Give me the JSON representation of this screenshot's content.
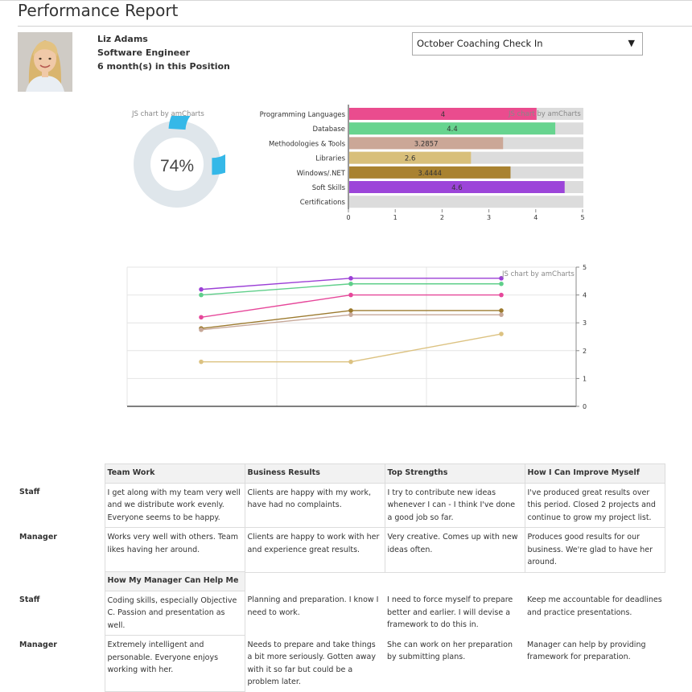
{
  "page": {
    "title": "Performance Report"
  },
  "profile": {
    "name": "Liz Adams",
    "role": "Software Engineer",
    "tenure": "6 month(s) in this Position"
  },
  "review_select": {
    "selected": "October Coaching Check In",
    "caret": "▼"
  },
  "watermarks": {
    "donut": "JS chart by amCharts",
    "bars": "JS chart by amCharts",
    "lines": "JS chart by amCharts"
  },
  "colors": {
    "donut_fill": "#35b8e8",
    "donut_track": "#dfe6eb",
    "bar_track": "#dcdcdc"
  },
  "chart_data": [
    {
      "type": "pie",
      "value_percent": 74,
      "center_label": "74%"
    },
    {
      "type": "bar",
      "orientation": "horizontal",
      "categories": [
        "Programming Languages",
        "Database",
        "Methodologies & Tools",
        "Libraries",
        "Windows/.NET",
        "Soft Skills",
        "Certifications"
      ],
      "values": [
        4,
        4.4,
        3.2857,
        2.6,
        3.4444,
        4.6,
        0
      ],
      "value_labels": [
        "4",
        "4.4",
        "3.2857",
        "2.6",
        "3.4444",
        "4.6",
        ""
      ],
      "colors": [
        "#ea4c8e",
        "#67d48f",
        "#cba797",
        "#d8bf7a",
        "#a98230",
        "#9c45d9",
        "#dcdcdc"
      ],
      "xlim": [
        0,
        5
      ],
      "ticks": [
        "0",
        "1",
        "2",
        "3",
        "4",
        "5"
      ]
    },
    {
      "type": "line",
      "x": [
        1,
        2,
        3
      ],
      "ylim": [
        0,
        5
      ],
      "ticks": [
        "0",
        "1",
        "2",
        "3",
        "4",
        "5"
      ],
      "grid": true,
      "series": [
        {
          "color": "#9b3fd6",
          "values": [
            4.2,
            4.6,
            4.6
          ]
        },
        {
          "color": "#5fcf8a",
          "values": [
            4.0,
            4.4,
            4.4
          ]
        },
        {
          "color": "#e6479a",
          "values": [
            3.2,
            4.0,
            4.0
          ]
        },
        {
          "color": "#9c7a2e",
          "values": [
            2.8,
            3.44,
            3.44
          ]
        },
        {
          "color": "#c7a899",
          "values": [
            2.75,
            3.29,
            3.29
          ]
        },
        {
          "color": "#dcc281",
          "values": [
            1.6,
            1.6,
            2.6
          ]
        }
      ]
    }
  ],
  "feedback": {
    "row_labels": {
      "staff": "Staff",
      "manager": "Manager"
    },
    "section1": {
      "headers": [
        "Team Work",
        "Business Results",
        "Top Strengths",
        "How I Can Improve Myself"
      ],
      "staff": [
        "I get along with my team very well and we distribute work evenly. Everyone seems to be happy.",
        "Clients are happy with my work, have had no complaints.",
        "I try to contribute new ideas whenever I can - I think I've done a good job so far.",
        "I've produced great results over this period. Closed 2 projects and continue to grow my project list."
      ],
      "manager": [
        "Works very well with others. Team likes having her around.",
        "Clients are happy to work with her and experience great results.",
        "Very creative. Comes up with new ideas often.",
        "Produces good results for our business. We're glad to have her around."
      ]
    },
    "section2": {
      "header": "How My Manager Can Help Me",
      "staff": [
        "Coding skills, especially Objective C. Passion and presentation as well.",
        "Planning and preparation. I know I need to work.",
        "I need to force myself to prepare better and earlier. I will devise a framework to do this in.",
        "Keep me accountable for deadlines and practice presentations."
      ],
      "manager": [
        "Extremely intelligent and personable. Everyone enjoys working with her.",
        "Needs to prepare and take things a bit more seriously. Gotten away with it so far but could be a problem later.",
        "She can work on her preparation by submitting plans.",
        "Manager can help by providing framework for preparation."
      ]
    }
  }
}
